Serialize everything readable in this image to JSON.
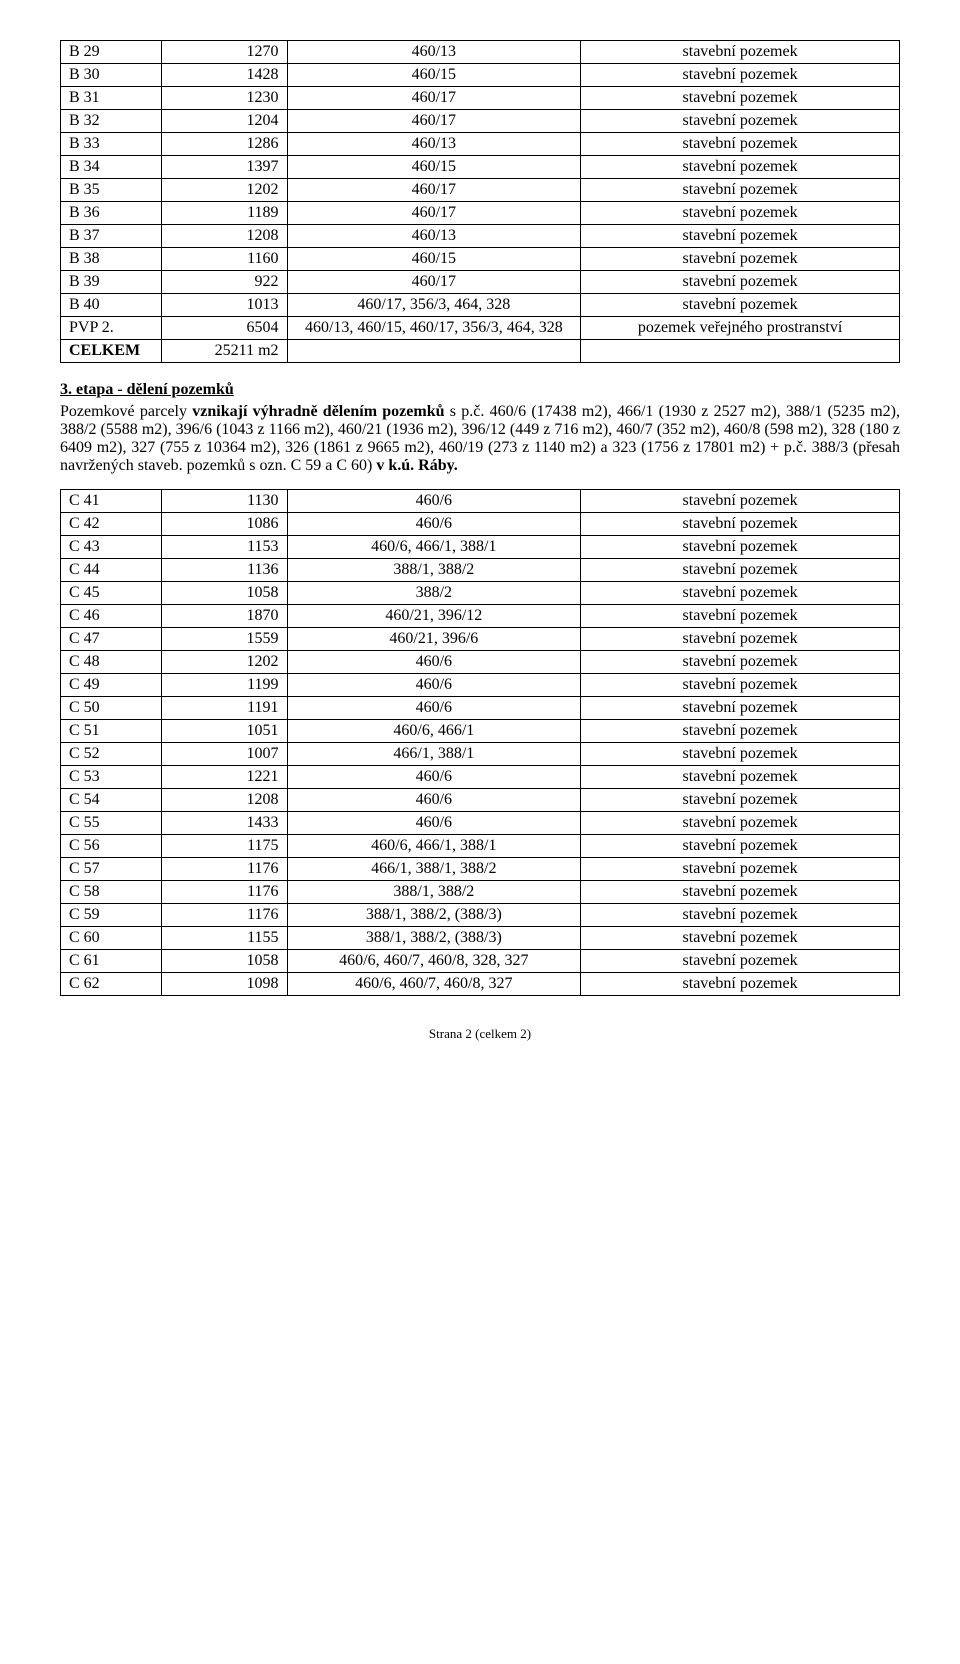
{
  "table1": {
    "rows": [
      [
        "B 29",
        "1270",
        "460/13",
        "stavební pozemek"
      ],
      [
        "B 30",
        "1428",
        "460/15",
        "stavební pozemek"
      ],
      [
        "B 31",
        "1230",
        "460/17",
        "stavební pozemek"
      ],
      [
        "B 32",
        "1204",
        "460/17",
        "stavební pozemek"
      ],
      [
        "B 33",
        "1286",
        "460/13",
        "stavební pozemek"
      ],
      [
        "B 34",
        "1397",
        "460/15",
        "stavební pozemek"
      ],
      [
        "B 35",
        "1202",
        "460/17",
        "stavební pozemek"
      ],
      [
        "B 36",
        "1189",
        "460/17",
        "stavební pozemek"
      ],
      [
        "B 37",
        "1208",
        "460/13",
        "stavební pozemek"
      ],
      [
        "B 38",
        "1160",
        "460/15",
        "stavební pozemek"
      ],
      [
        "B 39",
        "922",
        "460/17",
        "stavební pozemek"
      ],
      [
        "B 40",
        "1013",
        "460/17, 356/3, 464, 328",
        "stavební pozemek"
      ],
      [
        "PVP 2.",
        "6504",
        "460/13, 460/15, 460/17, 356/3, 464, 328",
        "pozemek veřejného prostranství"
      ]
    ],
    "total": [
      "CELKEM",
      "25211 m2",
      "",
      ""
    ]
  },
  "section": {
    "heading": "3. etapa - dělení pozemků",
    "body": "Pozemkové parcely vznikají výhradně dělením pozemků s p.č. 460/6 (17438 m2), 466/1 (1930 z 2527 m2), 388/1 (5235 m2), 388/2 (5588 m2), 396/6 (1043 z 1166 m2), 460/21 (1936 m2), 396/12 (449 z 716 m2), 460/7 (352 m2), 460/8 (598 m2), 328 (180 z 6409 m2), 327 (755 z 10364 m2), 326 (1861 z 9665 m2), 460/19 (273 z 1140 m2) a 323 (1756 z 17801 m2) + p.č. 388/3 (přesah navržených staveb. pozemků s ozn. C 59 a C 60) v k.ú. Ráby."
  },
  "table2": {
    "rows": [
      [
        "C 41",
        "1130",
        "460/6",
        "stavební pozemek"
      ],
      [
        "C 42",
        "1086",
        "460/6",
        "stavební pozemek"
      ],
      [
        "C 43",
        "1153",
        "460/6, 466/1, 388/1",
        "stavební pozemek"
      ],
      [
        "C 44",
        "1136",
        "388/1, 388/2",
        "stavební pozemek"
      ],
      [
        "C 45",
        "1058",
        "388/2",
        "stavební pozemek"
      ],
      [
        "C 46",
        "1870",
        "460/21, 396/12",
        "stavební pozemek"
      ],
      [
        "C 47",
        "1559",
        "460/21, 396/6",
        "stavební pozemek"
      ],
      [
        "C 48",
        "1202",
        "460/6",
        "stavební pozemek"
      ],
      [
        "C 49",
        "1199",
        "460/6",
        "stavební pozemek"
      ],
      [
        "C 50",
        "1191",
        "460/6",
        "stavební pozemek"
      ],
      [
        "C 51",
        "1051",
        "460/6, 466/1",
        "stavební pozemek"
      ],
      [
        "C 52",
        "1007",
        "466/1, 388/1",
        "stavební pozemek"
      ],
      [
        "C 53",
        "1221",
        "460/6",
        "stavební pozemek"
      ],
      [
        "C 54",
        "1208",
        "460/6",
        "stavební pozemek"
      ],
      [
        "C 55",
        "1433",
        "460/6",
        "stavební pozemek"
      ],
      [
        "C 56",
        "1175",
        "460/6, 466/1, 388/1",
        "stavební pozemek"
      ],
      [
        "C 57",
        "1176",
        "466/1, 388/1, 388/2",
        "stavební pozemek"
      ],
      [
        "C 58",
        "1176",
        "388/1, 388/2",
        "stavební pozemek"
      ],
      [
        "C 59",
        "1176",
        "388/1, 388/2, (388/3)",
        "stavební pozemek"
      ],
      [
        "C 60",
        "1155",
        "388/1, 388/2, (388/3)",
        "stavební pozemek"
      ],
      [
        "C 61",
        "1058",
        "460/6, 460/7, 460/8, 328, 327",
        "stavební pozemek"
      ],
      [
        "C 62",
        "1098",
        "460/6, 460/7, 460/8, 327",
        "stavební pozemek"
      ]
    ]
  },
  "footer": "Strana 2 (celkem 2)",
  "bold_segments": {
    "body_bold": [
      "vznikají výhradně dělením pozemků",
      "v k.ú. Ráby."
    ]
  }
}
